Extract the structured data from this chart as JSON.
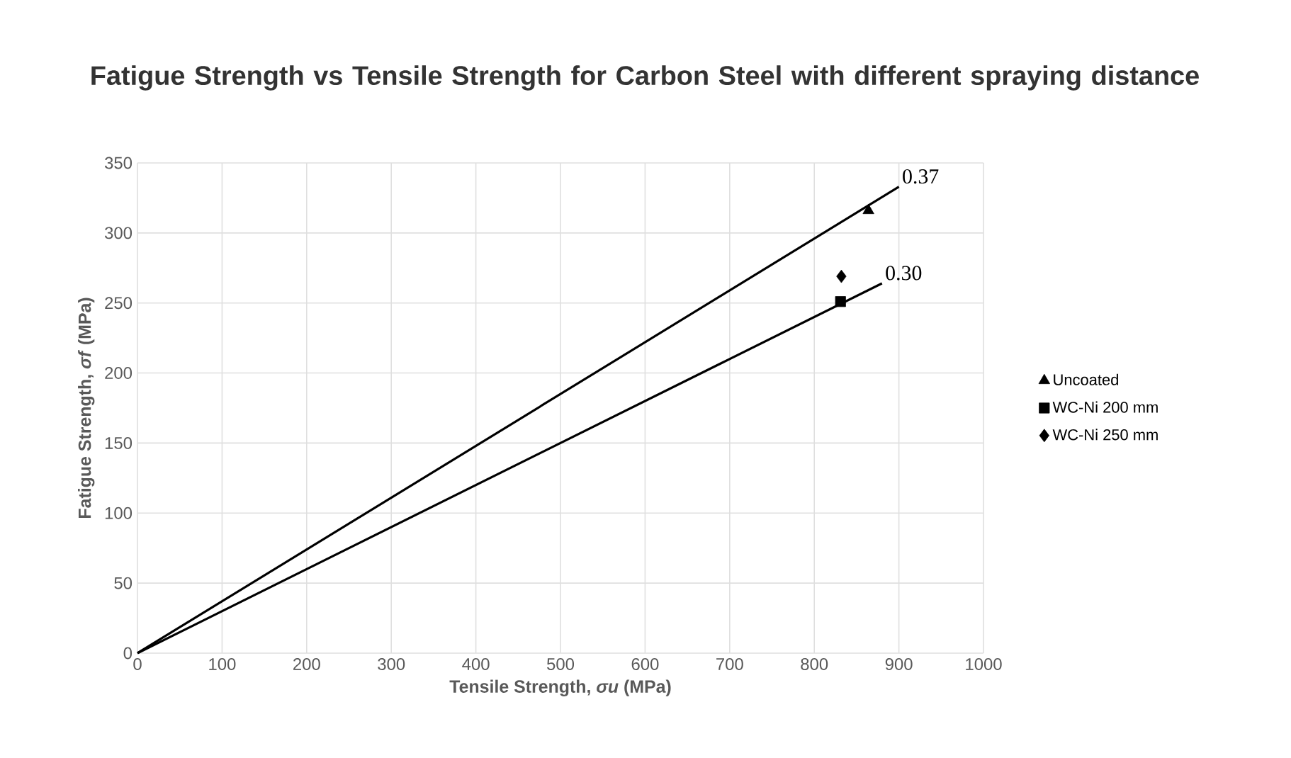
{
  "chart_data": {
    "type": "scatter",
    "title": "Fatigue Strength vs Tensile Strength for Carbon Steel with different spraying distance",
    "xlabel": "Tensile Strength, *σu* (MPa)",
    "ylabel": "Fatigue Strength, *σf* (MPa)",
    "xlim": [
      0,
      1000
    ],
    "xticks": [
      0,
      100,
      200,
      300,
      400,
      500,
      600,
      700,
      800,
      900,
      1000
    ],
    "ylim": [
      0,
      350
    ],
    "yticks": [
      0,
      50,
      100,
      150,
      200,
      250,
      300,
      350
    ],
    "grid": true,
    "legend": "right",
    "series": [
      {
        "type": "line",
        "color": "#000000",
        "x": [
          0,
          900
        ],
        "values": [
          0,
          333
        ],
        "marker": "none"
      },
      {
        "type": "line",
        "color": "#000000",
        "x": [
          0,
          880
        ],
        "values": [
          0,
          264
        ],
        "marker": "none"
      },
      {
        "name": "Uncoated",
        "color": "#000000",
        "marker": "triangle",
        "x": [
          864
        ],
        "values": [
          316
        ]
      },
      {
        "name": "WC-Ni 200 mm",
        "color": "#000000",
        "marker": "square",
        "x": [
          831
        ],
        "values": [
          251
        ]
      },
      {
        "name": "WC-Ni 250 mm",
        "color": "#000000",
        "marker": "diamond",
        "x": [
          832
        ],
        "values": [
          269
        ]
      }
    ],
    "annotations": [
      {
        "text": "0.37",
        "x": 900,
        "y": 333
      },
      {
        "text": "0.30",
        "x": 880,
        "y": 264
      }
    ]
  }
}
